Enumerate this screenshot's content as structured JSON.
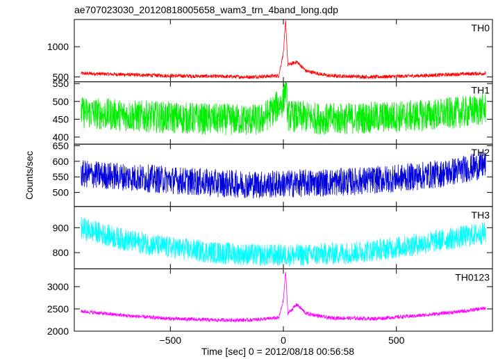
{
  "chart_data": {
    "type": "line",
    "title": "ae707023030_20120818005658_wam3_trn_4band_long.qdp",
    "xlabel": "Time [sec] 0 = 2012/08/18 00:56:58",
    "ylabel": "Counts/sec",
    "xlim": [
      -925,
      925
    ],
    "x_ticks": [
      -500,
      0,
      500
    ],
    "x_tick_labels": [
      "−500",
      "0",
      "500"
    ],
    "panels": [
      {
        "name": "TH0",
        "color": "#ff0000",
        "ylim": [
          420,
          1450
        ],
        "y_ticks": [
          500,
          1000
        ],
        "y_tick_labels": [
          "500",
          "1000"
        ],
        "x": [
          -900,
          -700,
          -500,
          -300,
          -150,
          -20,
          0,
          10,
          20,
          60,
          100,
          200,
          400,
          600,
          800,
          900
        ],
        "y": [
          560,
          540,
          520,
          510,
          500,
          520,
          900,
          1420,
          700,
          750,
          600,
          520,
          500,
          520,
          550,
          560
        ]
      },
      {
        "name": "TH1",
        "color": "#00ee00",
        "ylim": [
          380,
          555
        ],
        "y_ticks": [
          400,
          450,
          500,
          550
        ],
        "y_tick_labels": [
          "400",
          "450",
          "500",
          "550"
        ],
        "x": [
          -900,
          -700,
          -500,
          -300,
          -100,
          0,
          10,
          20,
          200,
          400,
          600,
          800,
          900
        ],
        "y": [
          470,
          460,
          455,
          450,
          448,
          500,
          550,
          460,
          450,
          455,
          460,
          470,
          480
        ],
        "spread": 45
      },
      {
        "name": "TH2",
        "color": "#0000dd",
        "ylim": [
          455,
          655
        ],
        "y_ticks": [
          500,
          550,
          600,
          650
        ],
        "y_tick_labels": [
          "500",
          "550",
          "600",
          "650"
        ],
        "x": [
          -900,
          -700,
          -500,
          -300,
          -100,
          100,
          300,
          500,
          700,
          900
        ],
        "y": [
          560,
          550,
          540,
          530,
          525,
          530,
          535,
          545,
          560,
          590
        ],
        "spread": 45
      },
      {
        "name": "TH3",
        "color": "#00ffff",
        "ylim": [
          735,
          985
        ],
        "y_ticks": [
          800,
          900
        ],
        "y_tick_labels": [
          "800",
          "900"
        ],
        "x": [
          -900,
          -700,
          -500,
          -300,
          -100,
          100,
          300,
          500,
          700,
          900
        ],
        "y": [
          900,
          850,
          820,
          800,
          790,
          790,
          800,
          820,
          850,
          880
        ],
        "spread": 45
      },
      {
        "name": "TH0123",
        "color": "#ff00ff",
        "ylim": [
          2000,
          3400
        ],
        "y_ticks": [
          2000,
          2500,
          3000
        ],
        "y_tick_labels": [
          "2000",
          "2500",
          "3000"
        ],
        "x": [
          -900,
          -700,
          -500,
          -300,
          -150,
          -20,
          0,
          10,
          20,
          60,
          100,
          200,
          400,
          600,
          800,
          900
        ],
        "y": [
          2450,
          2350,
          2280,
          2250,
          2250,
          2300,
          2700,
          3350,
          2400,
          2600,
          2400,
          2300,
          2280,
          2350,
          2450,
          2520
        ]
      }
    ]
  }
}
